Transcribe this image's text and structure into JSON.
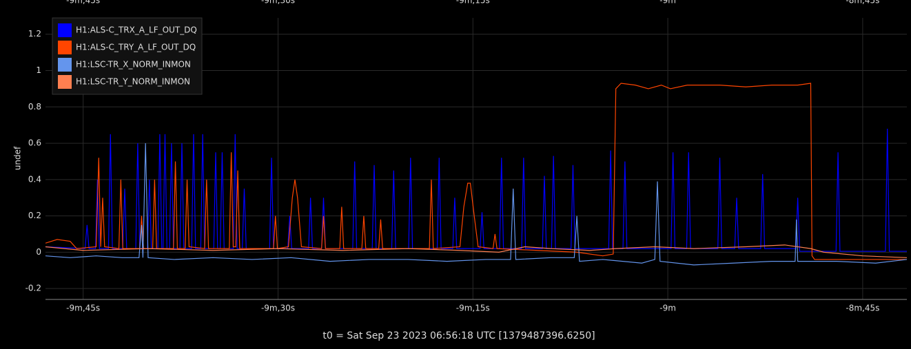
{
  "chart_data": {
    "type": "line",
    "y_label": "undef",
    "x_title": "t0 = Sat Sep 23 2023 06:56:18 UTC [1379487396.6250]",
    "xlim": [
      -587.9,
      -521.6
    ],
    "ylim": [
      -0.26,
      1.29
    ],
    "xticks": [
      {
        "value": -585,
        "label": "-9m,45s"
      },
      {
        "value": -570,
        "label": "-9m,30s"
      },
      {
        "value": -555,
        "label": "-9m,15s"
      },
      {
        "value": -540,
        "label": "-9m"
      },
      {
        "value": -525,
        "label": "-8m,45s"
      }
    ],
    "yticks": [
      -0.2,
      0,
      0.2,
      0.4,
      0.6,
      0.8,
      1,
      1.2
    ],
    "grid": true,
    "legend": "top-left",
    "series": [
      {
        "name": "H1:ALS-C_TRX_A_LF_OUT_DQ",
        "color": "#0000ff",
        "x": [
          -587.9,
          -584.85,
          -584.7,
          -584.55,
          -584.05,
          -583.9,
          -583.75,
          -583.05,
          -582.9,
          -582.75,
          -581.95,
          -581.8,
          -581.65,
          -580.95,
          -580.8,
          -580.65,
          -580.05,
          -579.9,
          -579.75,
          -579.25,
          -579.1,
          -578.95,
          -578.85,
          -578.7,
          -578.55,
          -578.35,
          -578.2,
          -578.05,
          -577.55,
          -577.4,
          -577.25,
          -576.65,
          -576.5,
          -576.35,
          -575.95,
          -575.8,
          -575.65,
          -574.95,
          -574.8,
          -574.65,
          -574.45,
          -574.3,
          -574.15,
          -573.45,
          -573.3,
          -573.15,
          -572.75,
          -572.6,
          -572.45,
          -570.65,
          -570.5,
          -570.35,
          -569.25,
          -569.1,
          -568.95,
          -567.65,
          -567.5,
          -567.35,
          -566.65,
          -566.5,
          -566.35,
          -564.25,
          -564.1,
          -563.95,
          -562.75,
          -562.6,
          -562.45,
          -561.25,
          -561.1,
          -560.95,
          -559.95,
          -559.8,
          -559.65,
          -557.75,
          -557.6,
          -557.45,
          -556.55,
          -556.4,
          -556.25,
          -554.45,
          -554.3,
          -554.15,
          -552.95,
          -552.8,
          -552.65,
          -551.25,
          -551.1,
          -550.95,
          -549.65,
          -549.5,
          -549.35,
          -548.95,
          -548.8,
          -548.65,
          -547.45,
          -547.3,
          -547.15,
          -544.55,
          -544.4,
          -544.25,
          -543.45,
          -543.3,
          -543.15,
          -539.75,
          -539.6,
          -539.45,
          -538.55,
          -538.4,
          -538.25,
          -536.15,
          -536.0,
          -535.85,
          -534.85,
          -534.7,
          -534.55,
          -532.85,
          -532.7,
          -532.55,
          -530.15,
          -530.0,
          -529.85,
          -527.05,
          -526.9,
          -526.75,
          -523.25,
          -523.1,
          -522.95,
          -521.6
        ],
        "values": [
          0.03,
          0.02,
          0.15,
          0.02,
          0.02,
          0.4,
          0.02,
          0.02,
          0.65,
          0.02,
          0.02,
          0.35,
          0.02,
          0.02,
          0.6,
          0.02,
          0.02,
          0.4,
          0.02,
          0.02,
          0.65,
          0.02,
          0.02,
          0.65,
          0.02,
          0.02,
          0.6,
          0.02,
          0.02,
          0.6,
          0.02,
          0.02,
          0.65,
          0.02,
          0.02,
          0.65,
          0.02,
          0.02,
          0.55,
          0.02,
          0.02,
          0.55,
          0.02,
          0.02,
          0.65,
          0.02,
          0.02,
          0.35,
          0.02,
          0.02,
          0.52,
          0.02,
          0.02,
          0.2,
          0.02,
          0.02,
          0.3,
          0.02,
          0.02,
          0.3,
          0.02,
          0.02,
          0.5,
          0.02,
          0.02,
          0.48,
          0.02,
          0.02,
          0.45,
          0.02,
          0.02,
          0.52,
          0.02,
          0.02,
          0.52,
          0.02,
          0.02,
          0.3,
          0.02,
          0.02,
          0.22,
          0.02,
          0.02,
          0.52,
          0.02,
          0.02,
          0.52,
          0.02,
          0.02,
          0.42,
          0.02,
          0.02,
          0.53,
          0.02,
          0.02,
          0.48,
          0.02,
          0.02,
          0.56,
          0.02,
          0.02,
          0.5,
          0.02,
          0.02,
          0.55,
          0.02,
          0.02,
          0.55,
          0.02,
          0.02,
          0.52,
          0.02,
          0.02,
          0.3,
          0.02,
          0.02,
          0.43,
          0.02,
          0.02,
          0.3,
          0.005,
          0.005,
          0.55,
          0.005,
          0.005,
          0.68,
          0.005,
          0.005
        ]
      },
      {
        "name": "H1:ALS-C_TRY_A_LF_OUT_DQ",
        "color": "#ff4500",
        "x": [
          -587.9,
          -587.0,
          -586.0,
          -585.5,
          -584.0,
          -583.8,
          -583.65,
          -583.5,
          -583.35,
          -582.25,
          -582.1,
          -581.95,
          -580.65,
          -580.5,
          -580.35,
          -579.65,
          -579.5,
          -579.35,
          -578.05,
          -577.9,
          -577.75,
          -577.15,
          -577.0,
          -576.85,
          -575.65,
          -575.5,
          -575.35,
          -573.75,
          -573.6,
          -573.45,
          -573.25,
          -573.1,
          -572.95,
          -570.35,
          -570.2,
          -570.05,
          -569.2,
          -568.9,
          -568.7,
          -568.5,
          -568.2,
          -566.65,
          -566.5,
          -566.35,
          -565.25,
          -565.1,
          -564.95,
          -563.55,
          -563.4,
          -563.25,
          -562.25,
          -562.1,
          -561.95,
          -558.35,
          -558.2,
          -558.05,
          -556.0,
          -555.7,
          -555.4,
          -555.2,
          -554.9,
          -554.6,
          -553.45,
          -553.3,
          -553.15,
          -550,
          -547,
          -545,
          -544.2,
          -544.0,
          -543.6,
          -542.5,
          -541.5,
          -540.5,
          -539.8,
          -538.5,
          -536,
          -534,
          -532,
          -530,
          -529.0,
          -528.9,
          -528.7,
          -525,
          -521.6
        ],
        "values": [
          0.05,
          0.07,
          0.06,
          0.02,
          0.03,
          0.52,
          0.03,
          0.3,
          0.03,
          0.02,
          0.4,
          0.02,
          0.02,
          0.2,
          0.02,
          0.02,
          0.4,
          0.02,
          0.02,
          0.5,
          0.02,
          0.02,
          0.4,
          0.03,
          0.02,
          0.4,
          0.02,
          0.02,
          0.55,
          0.03,
          0.03,
          0.45,
          0.02,
          0.02,
          0.2,
          0.02,
          0.03,
          0.3,
          0.4,
          0.3,
          0.03,
          0.02,
          0.2,
          0.02,
          0.02,
          0.25,
          0.02,
          0.02,
          0.2,
          0.02,
          0.02,
          0.18,
          0.02,
          0.02,
          0.4,
          0.02,
          0.03,
          0.25,
          0.38,
          0.38,
          0.2,
          0.03,
          0.02,
          0.1,
          0.02,
          0.01,
          0.0,
          -0.02,
          -0.01,
          0.9,
          0.93,
          0.92,
          0.9,
          0.92,
          0.9,
          0.92,
          0.92,
          0.91,
          0.92,
          0.92,
          0.93,
          -0.02,
          -0.04,
          -0.04,
          -0.04
        ]
      },
      {
        "name": "H1:LSC-TR_X_NORM_INMON",
        "color": "#6495ed",
        "x": [
          -587.9,
          -586,
          -584,
          -582,
          -580.7,
          -580.5,
          -580.4,
          -580.2,
          -580.0,
          -578,
          -575,
          -572,
          -569,
          -566,
          -563,
          -560,
          -557,
          -554,
          -552.1,
          -551.9,
          -551.7,
          -549,
          -547.2,
          -547.0,
          -546.8,
          -545,
          -542,
          -541.0,
          -540.8,
          -540.6,
          -538,
          -535,
          -532,
          -530.2,
          -530.1,
          -530.0,
          -527,
          -524,
          -521.6
        ],
        "values": [
          -0.02,
          -0.03,
          -0.02,
          -0.03,
          -0.03,
          0.15,
          -0.03,
          0.6,
          -0.03,
          -0.04,
          -0.03,
          -0.04,
          -0.03,
          -0.05,
          -0.04,
          -0.04,
          -0.05,
          -0.04,
          -0.04,
          0.35,
          -0.04,
          -0.03,
          -0.03,
          0.2,
          -0.05,
          -0.04,
          -0.06,
          -0.04,
          0.39,
          -0.05,
          -0.07,
          -0.06,
          -0.05,
          -0.05,
          0.18,
          -0.05,
          -0.05,
          -0.06,
          -0.04
        ]
      },
      {
        "name": "H1:LSC-TR_Y_NORM_INMON",
        "color": "#ff7f50",
        "x": [
          -587.9,
          -585,
          -580,
          -575,
          -570,
          -565,
          -560,
          -556,
          -553,
          -551,
          -549,
          -546,
          -544,
          -541,
          -538,
          -534,
          -531,
          -529,
          -528,
          -525,
          -521.6
        ],
        "values": [
          0.03,
          0.01,
          0.02,
          0.01,
          0.02,
          0.01,
          0.02,
          0.01,
          0.0,
          0.03,
          0.02,
          0.01,
          0.02,
          0.03,
          0.02,
          0.03,
          0.04,
          0.02,
          0.0,
          -0.02,
          -0.03
        ]
      }
    ]
  }
}
